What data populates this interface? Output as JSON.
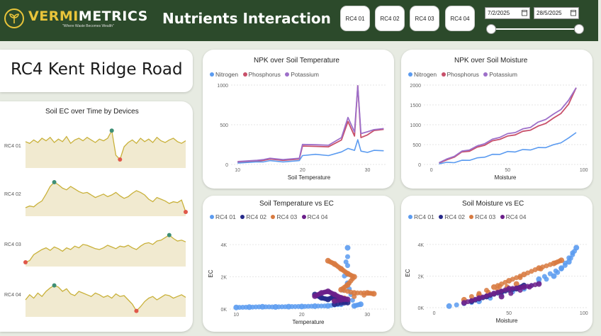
{
  "header": {
    "logo_part1": "VERMI",
    "logo_part2": "METRICS",
    "tagline": "\"Where Waste Becomes Wealth\"",
    "page_title": "Nutrients Interaction",
    "devices": [
      "RC4 01",
      "RC4 02",
      "RC4 03",
      "RC4 04"
    ],
    "date_start": "7/2/2025",
    "date_end": "28/5/2025"
  },
  "site": {
    "name": "RC4 Kent Ridge Road"
  },
  "colors": {
    "header_bg": "#2c4a2b",
    "accent": "#e8c43a",
    "ec_line": "#c9b13a",
    "ec_fill": "#f1ead0",
    "nitrogen": "#5b9bf0",
    "phosphorus": "#c8506a",
    "potassium": "#9d6fc9",
    "rc4_01": "#5b9bf0",
    "rc4_02": "#262a8a",
    "rc4_03": "#d87a40",
    "rc4_04": "#6b1f8a"
  },
  "chart_data": [
    {
      "type": "line",
      "title": "Soil EC over Time by Devices",
      "series": [
        {
          "name": "RC4 01",
          "values": [
            62,
            58,
            66,
            60,
            70,
            64,
            72,
            60,
            68,
            62,
            74,
            58,
            66,
            70,
            64,
            72,
            66,
            60,
            68,
            64,
            70,
            88,
            30,
            20,
            50,
            60,
            66,
            58,
            70,
            62,
            68,
            60,
            72,
            64,
            60,
            66,
            70,
            62,
            58,
            64
          ]
        },
        {
          "name": "RC4 02",
          "values": [
            20,
            24,
            22,
            30,
            36,
            52,
            70,
            80,
            74,
            66,
            62,
            70,
            64,
            58,
            54,
            56,
            50,
            44,
            48,
            52,
            46,
            50,
            56,
            48,
            42,
            46,
            54,
            60,
            56,
            50,
            40,
            34,
            44,
            40,
            36,
            30,
            34,
            32,
            38,
            10
          ]
        },
        {
          "name": "RC4 03",
          "values": [
            10,
            14,
            28,
            34,
            40,
            44,
            38,
            46,
            42,
            36,
            44,
            40,
            48,
            44,
            52,
            50,
            46,
            42,
            40,
            44,
            50,
            46,
            42,
            48,
            46,
            50,
            44,
            40,
            48,
            54,
            56,
            52,
            60,
            62,
            68,
            74,
            66,
            60,
            62,
            58
          ]
        },
        {
          "name": "RC4 04",
          "values": [
            40,
            52,
            44,
            56,
            48,
            60,
            68,
            74,
            70,
            60,
            66,
            54,
            50,
            60,
            56,
            52,
            48,
            56,
            52,
            46,
            50,
            44,
            54,
            48,
            50,
            40,
            30,
            14,
            24,
            36,
            44,
            48,
            40,
            46,
            52,
            50,
            44,
            48,
            52,
            46
          ]
        }
      ],
      "ylabels": [
        "RC4 01",
        "RC4 02",
        "RC4 03",
        "RC4 04"
      ]
    },
    {
      "type": "line",
      "title": "NPK over Soil Temperature",
      "xlabel": "Soil Temperature",
      "x_ticks": [
        10,
        20,
        30
      ],
      "y_ticks": [
        0,
        500,
        1000
      ],
      "xlim": [
        9,
        33
      ],
      "ylim": [
        0,
        1000
      ],
      "series": [
        {
          "name": "Nitrogen",
          "x": [
            10,
            13,
            14,
            15,
            17,
            19.5,
            20,
            22,
            24,
            26,
            27,
            28,
            28.5,
            29,
            30,
            31,
            32.5
          ],
          "y": [
            25,
            25,
            40,
            40,
            40,
            40,
            120,
            120,
            120,
            150,
            210,
            170,
            320,
            160,
            160,
            170,
            180
          ]
        },
        {
          "name": "Phosphorus",
          "x": [
            10,
            13,
            14,
            15,
            17,
            19.5,
            20,
            22,
            24,
            26,
            27,
            28,
            28.5,
            29,
            30,
            31,
            32.5
          ],
          "y": [
            35,
            35,
            60,
            60,
            60,
            60,
            240,
            220,
            230,
            300,
            550,
            350,
            1000,
            330,
            380,
            420,
            450
          ]
        },
        {
          "name": "Potassium",
          "x": [
            10,
            13,
            14,
            15,
            17,
            19.5,
            20,
            22,
            24,
            26,
            27,
            28,
            28.5,
            29,
            30,
            31,
            32.5
          ],
          "y": [
            45,
            45,
            70,
            70,
            70,
            70,
            260,
            240,
            250,
            330,
            600,
            400,
            1000,
            380,
            420,
            430,
            460
          ]
        }
      ]
    },
    {
      "type": "line",
      "title": "NPK over Soil Moisture",
      "xlabel": "Moisture",
      "x_ticks": [
        0,
        50,
        100
      ],
      "y_ticks": [
        0,
        500,
        1000,
        1500,
        2000
      ],
      "xlim": [
        -5,
        102
      ],
      "ylim": [
        0,
        2000
      ],
      "series": [
        {
          "name": "Nitrogen",
          "x": [
            5,
            10,
            15,
            20,
            25,
            30,
            35,
            40,
            45,
            50,
            55,
            60,
            65,
            70,
            75,
            80,
            85,
            90,
            95
          ],
          "y": [
            30,
            40,
            60,
            90,
            120,
            150,
            200,
            240,
            270,
            310,
            330,
            360,
            380,
            410,
            440,
            480,
            560,
            650,
            820
          ]
        },
        {
          "name": "Phosphorus",
          "x": [
            5,
            10,
            15,
            20,
            25,
            30,
            35,
            40,
            45,
            50,
            55,
            60,
            65,
            70,
            75,
            80,
            85,
            90,
            95
          ],
          "y": [
            50,
            100,
            200,
            300,
            350,
            420,
            500,
            580,
            650,
            700,
            760,
            820,
            880,
            950,
            1050,
            1150,
            1300,
            1500,
            1950
          ]
        },
        {
          "name": "Potassium",
          "x": [
            5,
            10,
            15,
            20,
            25,
            30,
            35,
            40,
            45,
            50,
            55,
            60,
            65,
            70,
            75,
            80,
            85,
            90,
            95
          ],
          "y": [
            60,
            120,
            220,
            320,
            380,
            450,
            540,
            620,
            700,
            760,
            820,
            880,
            950,
            1050,
            1150,
            1250,
            1400,
            1600,
            1950
          ]
        }
      ]
    },
    {
      "type": "scatter",
      "title": "Soil Temperature vs EC",
      "xlabel": "Temperature",
      "ylabel": "EC",
      "x_ticks": [
        10,
        20,
        30
      ],
      "y_ticks": [
        "0K",
        "2K",
        "4K"
      ],
      "xlim": [
        9,
        33
      ],
      "ylim": [
        0,
        4400
      ],
      "series": [
        {
          "name": "RC4 01",
          "points": [
            [
              10,
              100
            ],
            [
              12,
              120
            ],
            [
              14,
              140
            ],
            [
              16,
              130
            ],
            [
              18,
              150
            ],
            [
              20,
              160
            ],
            [
              22,
              180
            ],
            [
              24,
              200
            ],
            [
              26,
              300
            ],
            [
              27,
              3800
            ],
            [
              27,
              1600
            ],
            [
              28,
              200
            ],
            [
              29,
              300
            ]
          ]
        },
        {
          "name": "RC4 02",
          "points": [
            [
              22,
              900
            ],
            [
              23,
              700
            ],
            [
              24,
              600
            ],
            [
              25,
              800
            ],
            [
              26,
              500
            ],
            [
              27,
              400
            ],
            [
              25,
              300
            ]
          ]
        },
        {
          "name": "RC4 03",
          "points": [
            [
              24,
              3000
            ],
            [
              25,
              2800
            ],
            [
              26,
              2500
            ],
            [
              27,
              2200
            ],
            [
              28,
              2000
            ],
            [
              27,
              1500
            ],
            [
              26,
              1200
            ],
            [
              28,
              1000
            ],
            [
              30,
              1000
            ],
            [
              31,
              950
            ],
            [
              25,
              600
            ]
          ]
        },
        {
          "name": "RC4 04",
          "points": [
            [
              22,
              800
            ],
            [
              23,
              1000
            ],
            [
              24,
              1100
            ],
            [
              25,
              900
            ],
            [
              26,
              700
            ],
            [
              27,
              600
            ],
            [
              25,
              500
            ]
          ]
        }
      ]
    },
    {
      "type": "scatter",
      "title": "Soil Moisture vs EC",
      "xlabel": "Moisture",
      "ylabel": "EC",
      "x_ticks": [
        0,
        50,
        100
      ],
      "y_ticks": [
        "0K",
        "2K",
        "4K"
      ],
      "xlim": [
        -5,
        102
      ],
      "ylim": [
        0,
        4400
      ],
      "series": [
        {
          "name": "RC4 01",
          "points": [
            [
              10,
              100
            ],
            [
              30,
              400
            ],
            [
              60,
              1200
            ],
            [
              80,
              2000
            ],
            [
              90,
              2900
            ],
            [
              95,
              3800
            ],
            [
              85,
              2500
            ],
            [
              70,
              1800
            ]
          ]
        },
        {
          "name": "RC4 02",
          "points": [
            [
              25,
              400
            ],
            [
              35,
              700
            ],
            [
              45,
              1000
            ],
            [
              55,
              1200
            ],
            [
              60,
              1400
            ]
          ]
        },
        {
          "name": "RC4 03",
          "points": [
            [
              20,
              500
            ],
            [
              40,
              1300
            ],
            [
              50,
              1700
            ],
            [
              60,
              2100
            ],
            [
              70,
              2500
            ],
            [
              80,
              2800
            ],
            [
              85,
              3000
            ],
            [
              30,
              800
            ],
            [
              55,
              1500
            ]
          ]
        },
        {
          "name": "RC4 04",
          "points": [
            [
              20,
              300
            ],
            [
              30,
              600
            ],
            [
              40,
              900
            ],
            [
              50,
              1200
            ],
            [
              60,
              1300
            ],
            [
              70,
              1500
            ],
            [
              45,
              700
            ]
          ]
        }
      ]
    }
  ]
}
